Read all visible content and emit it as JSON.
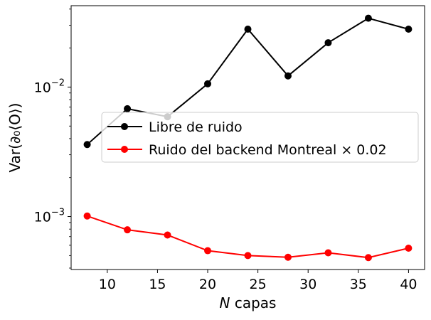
{
  "chart_data": {
    "type": "line",
    "xlabel_italic": "N",
    "xlabel_rest": " capas",
    "ylabel": "Var(∂₀⟨O⟩)",
    "yscale": "log",
    "xlim": [
      6.4,
      41.6
    ],
    "ylim": [
      0.00039,
      0.0425
    ],
    "x_ticks": [
      10,
      15,
      20,
      25,
      30,
      35,
      40
    ],
    "y_major_ticks": [
      {
        "value": 0.001,
        "base": "10",
        "exp": "−3"
      },
      {
        "value": 0.01,
        "base": "10",
        "exp": "−2"
      }
    ],
    "y_minor_ticks": [
      0.0004,
      0.0005,
      0.0006,
      0.0007,
      0.0008,
      0.0009,
      0.002,
      0.003,
      0.004,
      0.005,
      0.006,
      0.007,
      0.008,
      0.009,
      0.02,
      0.03,
      0.04
    ],
    "x": [
      8,
      12,
      16,
      20,
      24,
      28,
      32,
      36,
      40
    ],
    "series": [
      {
        "name": "Libre de ruido",
        "color": "#000000",
        "values": [
          0.0036,
          0.0068,
          0.0059,
          0.0106,
          0.028,
          0.0122,
          0.022,
          0.034,
          0.028
        ]
      },
      {
        "name": "Ruido del backend Montreal × 0.02",
        "color": "#ff0000",
        "values": [
          0.00101,
          0.00079,
          0.00072,
          0.000545,
          0.0005,
          0.000485,
          0.000525,
          0.000482,
          0.00057
        ]
      }
    ],
    "legend_position": "center-right",
    "grid": false
  }
}
